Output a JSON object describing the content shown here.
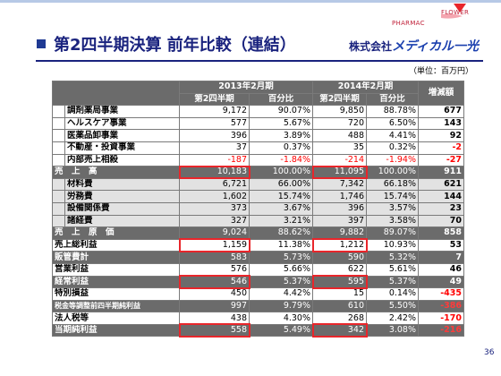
{
  "logo": {
    "top": "FLOWER",
    "left": "PHARMAC"
  },
  "title": "第2四半期決算 前年比較（連結）",
  "company": {
    "prefix": "株式会社",
    "brand": "メディカル一光"
  },
  "unit": "（単位：百万円）",
  "page_number": "36",
  "table": {
    "period_a": "2013年2月期",
    "period_b": "2014年2月期",
    "change_header": "増減額",
    "sub_value": "第2四半期",
    "sub_pct": "百分比",
    "rows": [
      {
        "label": "調剤薬局事業",
        "indent": true,
        "style": "plain",
        "a": "9,172",
        "ap": "90.07%",
        "b": "9,850",
        "bp": "88.78%",
        "c": "677"
      },
      {
        "label": "ヘルスケア事業",
        "indent": true,
        "style": "plain",
        "a": "577",
        "ap": "5.67%",
        "b": "720",
        "bp": "6.50%",
        "c": "143"
      },
      {
        "label": "医薬品卸事業",
        "indent": true,
        "style": "plain",
        "a": "396",
        "ap": "3.89%",
        "b": "488",
        "bp": "4.41%",
        "c": "92"
      },
      {
        "label": "不動産・投資事業",
        "indent": true,
        "style": "plain",
        "a": "37",
        "ap": "0.37%",
        "b": "35",
        "bp": "0.32%",
        "c": "-2",
        "neg": true
      },
      {
        "label": "内部売上相殺",
        "indent": true,
        "style": "plain",
        "a": "-187",
        "ap": "-1.84%",
        "b": "-214",
        "bp": "-1.94%",
        "c": "-27",
        "neg": true,
        "all_neg": true
      },
      {
        "label": "売　上　高",
        "indent": false,
        "style": "dark",
        "a": "10,183",
        "ap": "100.00%",
        "b": "11,095",
        "bp": "100.00%",
        "c": "911"
      },
      {
        "label": "材料費",
        "indent": true,
        "style": "lite",
        "a": "6,721",
        "ap": "66.00%",
        "b": "7,342",
        "bp": "66.18%",
        "c": "621"
      },
      {
        "label": "労務費",
        "indent": true,
        "style": "lite",
        "a": "1,602",
        "ap": "15.74%",
        "b": "1,746",
        "bp": "15.74%",
        "c": "144"
      },
      {
        "label": "設備関係費",
        "indent": true,
        "style": "lite",
        "a": "373",
        "ap": "3.67%",
        "b": "396",
        "bp": "3.57%",
        "c": "23"
      },
      {
        "label": "諸経費",
        "indent": true,
        "style": "lite",
        "a": "327",
        "ap": "3.21%",
        "b": "397",
        "bp": "3.58%",
        "c": "70"
      },
      {
        "label": "売　上　原　価",
        "indent": false,
        "style": "dark",
        "a": "9,024",
        "ap": "88.62%",
        "b": "9,882",
        "bp": "89.07%",
        "c": "858"
      },
      {
        "label": "売上総利益",
        "indent": false,
        "style": "plain",
        "a": "1,159",
        "ap": "11.38%",
        "b": "1,212",
        "bp": "10.93%",
        "c": "53"
      },
      {
        "label": "販管費計",
        "indent": false,
        "style": "dark",
        "a": "583",
        "ap": "5.73%",
        "b": "590",
        "bp": "5.32%",
        "c": "7"
      },
      {
        "label": "営業利益",
        "indent": false,
        "style": "plain",
        "a": "576",
        "ap": "5.66%",
        "b": "622",
        "bp": "5.61%",
        "c": "46"
      },
      {
        "label": "経常利益",
        "indent": false,
        "style": "dark",
        "a": "546",
        "ap": "5.37%",
        "b": "595",
        "bp": "5.37%",
        "c": "49"
      },
      {
        "label": "特別損益",
        "indent": false,
        "style": "plain",
        "a": "450",
        "ap": "4.42%",
        "b": "15",
        "bp": "0.14%",
        "c": "-435",
        "neg": true
      },
      {
        "label": "税金等調整前四半期純利益",
        "indent": false,
        "style": "dark",
        "small": true,
        "a": "997",
        "ap": "9.79%",
        "b": "610",
        "bp": "5.50%",
        "c": "-386",
        "neg": true
      },
      {
        "label": "法人税等",
        "indent": false,
        "style": "plain",
        "a": "438",
        "ap": "4.30%",
        "b": "268",
        "bp": "2.42%",
        "c": "-170",
        "neg": true
      },
      {
        "label": "当期純利益",
        "indent": false,
        "style": "dark",
        "a": "558",
        "ap": "5.49%",
        "b": "342",
        "bp": "3.08%",
        "c": "-216",
        "neg": true
      }
    ]
  }
}
